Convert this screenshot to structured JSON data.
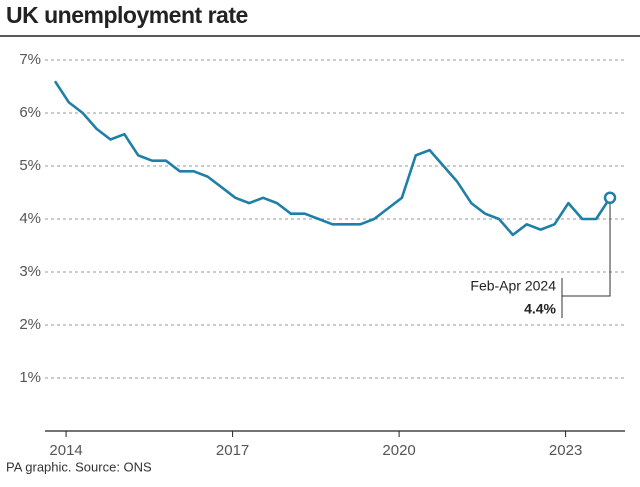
{
  "chart_data": {
    "type": "line",
    "title": "UK unemployment rate",
    "source": "PA graphic. Source: ONS",
    "x": [
      2013.8,
      2014.05,
      2014.3,
      2014.55,
      2014.8,
      2015.05,
      2015.3,
      2015.55,
      2015.8,
      2016.05,
      2016.3,
      2016.55,
      2016.8,
      2017.05,
      2017.3,
      2017.55,
      2017.8,
      2018.05,
      2018.3,
      2018.55,
      2018.8,
      2019.05,
      2019.3,
      2019.55,
      2019.8,
      2020.05,
      2020.3,
      2020.55,
      2020.8,
      2021.05,
      2021.3,
      2021.55,
      2021.8,
      2022.05,
      2022.3,
      2022.55,
      2022.8,
      2023.05,
      2023.3,
      2023.55,
      2023.8
    ],
    "series": [
      {
        "name": "Unemployment rate",
        "color": "#1f7fa6",
        "values": [
          6.6,
          6.2,
          6.0,
          5.7,
          5.5,
          5.6,
          5.2,
          5.1,
          5.1,
          4.9,
          4.9,
          4.8,
          4.6,
          4.4,
          4.3,
          4.4,
          4.3,
          4.1,
          4.1,
          4.0,
          3.9,
          3.9,
          3.9,
          4.0,
          4.2,
          4.4,
          5.2,
          5.3,
          5.0,
          4.7,
          4.3,
          4.1,
          4.0,
          3.7,
          3.9,
          3.8,
          3.9,
          4.3,
          4.0,
          4.0,
          4.4
        ]
      }
    ],
    "xlim": [
      2013.62,
      2024.07
    ],
    "xticks": [
      2014,
      2017,
      2020,
      2023
    ],
    "ylim": [
      0,
      7
    ],
    "yticks": [
      {
        "value": 1,
        "label": "1%"
      },
      {
        "value": 2,
        "label": "2%"
      },
      {
        "value": 3,
        "label": "3%"
      },
      {
        "value": 4,
        "label": "4%"
      },
      {
        "value": 5,
        "label": "5%"
      },
      {
        "value": 6,
        "label": "6%"
      },
      {
        "value": 7,
        "label": "7%"
      }
    ],
    "grid": true,
    "annotation": {
      "label": "Feb-Apr 2024",
      "value_label": "4.4%"
    }
  }
}
